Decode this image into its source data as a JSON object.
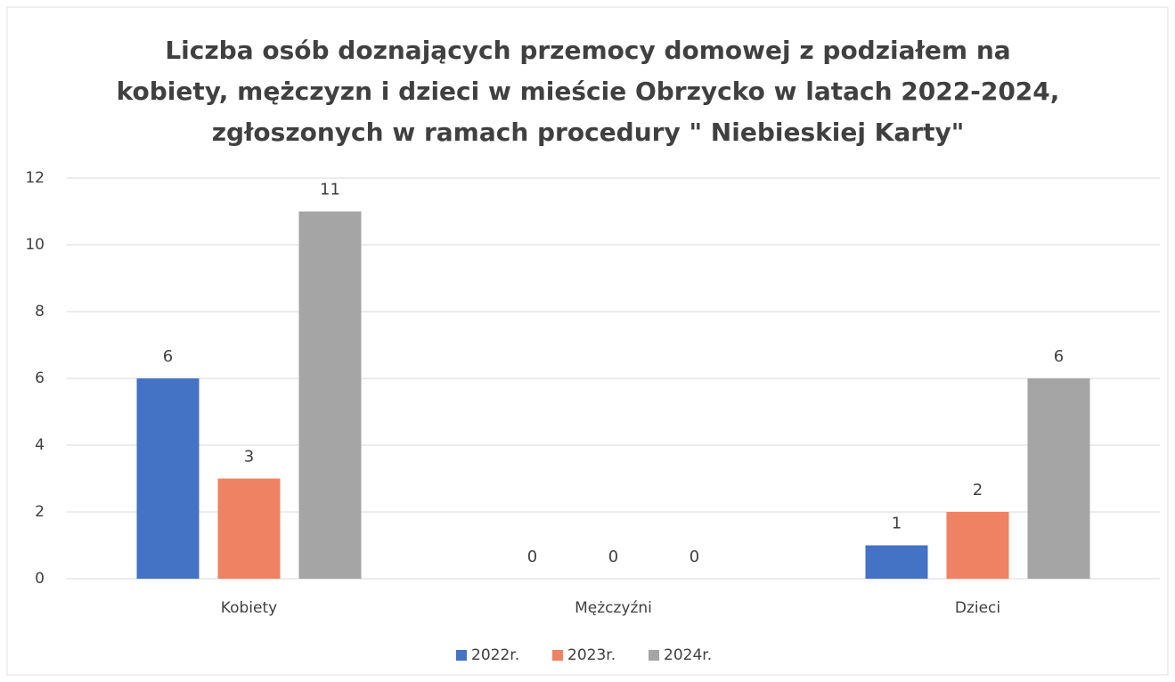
{
  "chart_data": {
    "type": "bar",
    "title": [
      "Liczba osób doznających przemocy domowej z podziałem na",
      "kobiety, mężczyzn i dzieci w mieście Obrzycko w latach 2022-2024,",
      "zgłoszonych w ramach procedury \" Niebieskiej Karty\""
    ],
    "categories": [
      "Kobiety",
      "Mężczyźni",
      "Dzieci"
    ],
    "series": [
      {
        "name": "2022r.",
        "color": "#4472c4",
        "values": [
          6,
          0,
          1
        ]
      },
      {
        "name": "2023r.",
        "color": "#ee8262",
        "values": [
          3,
          0,
          2
        ]
      },
      {
        "name": "2024r.",
        "color": "#a5a5a5",
        "values": [
          11,
          0,
          6
        ]
      }
    ],
    "ylim": [
      0,
      12
    ],
    "yticks": [
      0,
      2,
      4,
      6,
      8,
      10,
      12
    ],
    "grid": true,
    "legend": "bottom"
  }
}
